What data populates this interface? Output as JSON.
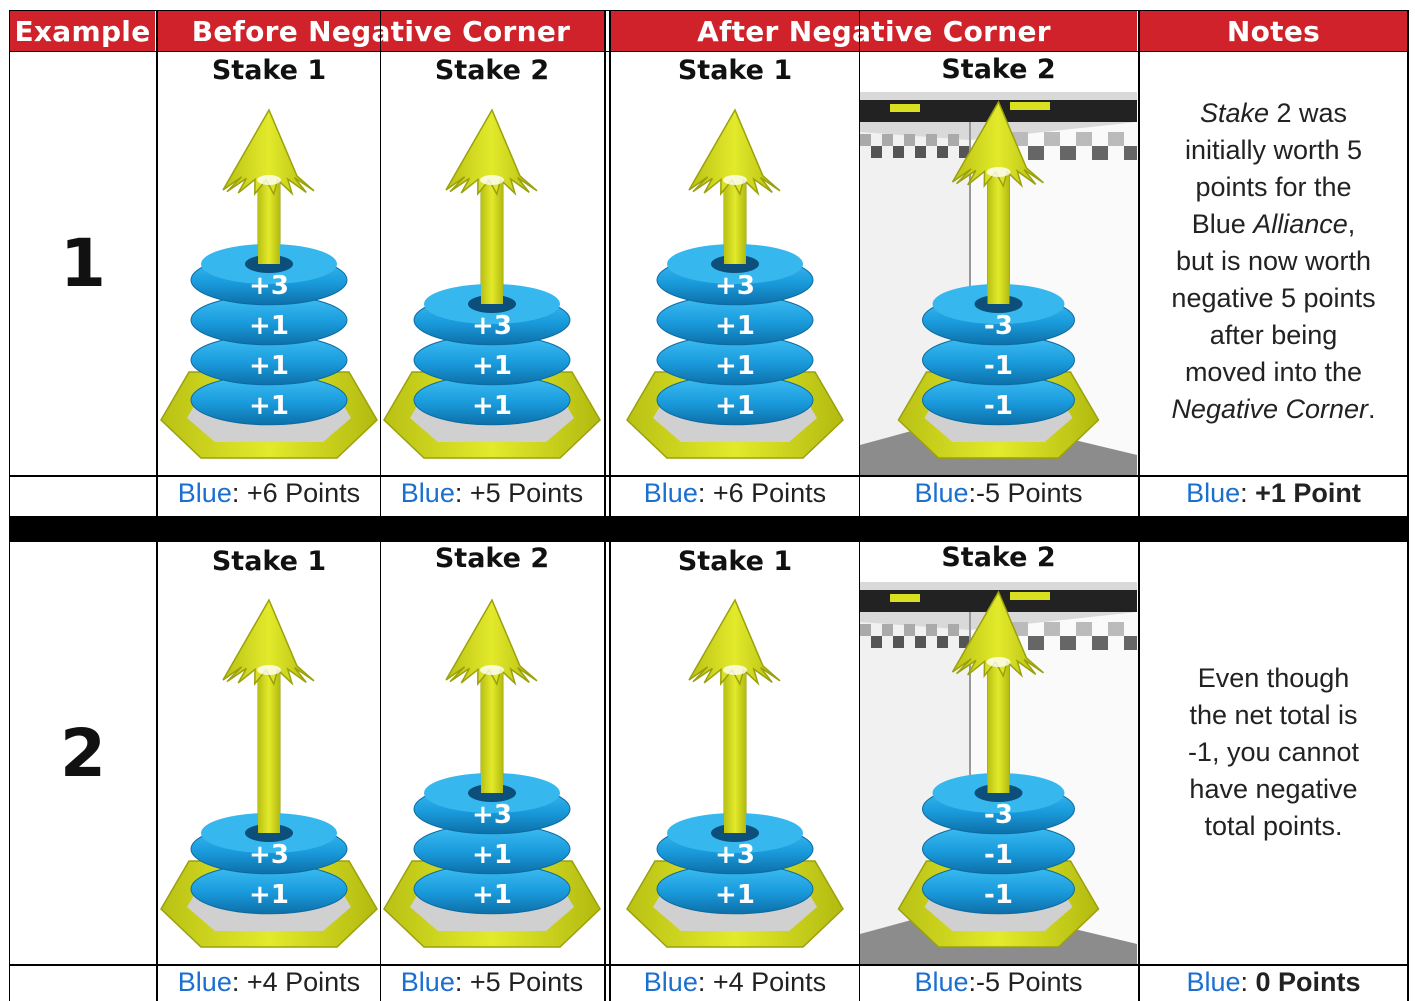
{
  "headers": {
    "example": "Example",
    "before": "Before Negative Corner",
    "after": "After Negative Corner",
    "notes": "Notes"
  },
  "examples": [
    {
      "number": "1",
      "stakes": [
        {
          "label": "Stake 1",
          "rings": [
            "+3",
            "+1",
            "+1",
            "+1"
          ],
          "score_color": "Blue",
          "score_value": ": +6 Points"
        },
        {
          "label": "Stake 2",
          "rings": [
            "+3",
            "+1",
            "+1"
          ],
          "score_color": "Blue",
          "score_value": ": +5 Points"
        },
        {
          "label": "Stake 1",
          "rings": [
            "+3",
            "+1",
            "+1",
            "+1"
          ],
          "score_color": "Blue",
          "score_value": ": +6 Points"
        },
        {
          "label": "Stake 2",
          "rings": [
            "-3",
            "-1",
            "-1"
          ],
          "score_color": "Blue",
          "score_value": ":-5 Points"
        }
      ],
      "note_lines": [
        "Stake 2 was",
        "initially worth 5",
        "points for the",
        "Blue Alliance,",
        "but is now worth",
        "negative 5 points",
        "after being",
        "moved into the",
        "Negative Corner."
      ],
      "total_color": "Blue",
      "total_sep": ": ",
      "total_value": "+1 Point"
    },
    {
      "number": "2",
      "stakes": [
        {
          "label": "Stake 1",
          "rings": [
            "+3",
            "+1"
          ],
          "score_color": "Blue",
          "score_value": ": +4 Points"
        },
        {
          "label": "Stake 2",
          "rings": [
            "+3",
            "+1",
            "+1"
          ],
          "score_color": "Blue",
          "score_value": ": +5 Points"
        },
        {
          "label": "Stake 1",
          "rings": [
            "+3",
            "+1"
          ],
          "score_color": "Blue",
          "score_value": ": +4 Points"
        },
        {
          "label": "Stake 2",
          "rings": [
            "-3",
            "-1",
            "-1"
          ],
          "score_color": "Blue",
          "score_value": ":-5 Points"
        }
      ],
      "note_lines": [
        "Even though",
        "the net total is",
        "-1, you cannot",
        "have negative",
        "total points."
      ],
      "total_color": "Blue",
      "total_sep": ": ",
      "total_value": "0 Points"
    }
  ],
  "colors": {
    "header_red": "#d0222a",
    "ring_blue": "#1fa3e0",
    "stake_yellow": "#d9e021",
    "alliance_blue": "#1a6fd0"
  }
}
